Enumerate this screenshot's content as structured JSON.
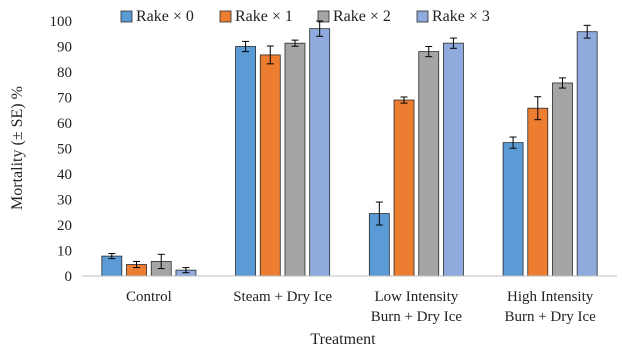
{
  "chart_data": {
    "type": "bar",
    "categories": [
      [
        "Control"
      ],
      [
        "Steam + Dry Ice"
      ],
      [
        "Low Intensity",
        "Burn + Dry Ice"
      ],
      [
        "High Intensity",
        "Burn + Dry Ice"
      ]
    ],
    "series": [
      {
        "name": "Rake × 0",
        "color": "#5b9bd5",
        "values": [
          7.8,
          90.0,
          24.5,
          52.3
        ],
        "errors": [
          1.0,
          2.0,
          4.5,
          2.2
        ]
      },
      {
        "name": "Rake × 1",
        "color": "#ed7d31",
        "values": [
          4.5,
          86.7,
          69.0,
          65.8
        ],
        "errors": [
          1.2,
          3.5,
          1.2,
          4.5
        ]
      },
      {
        "name": "Rake × 2",
        "color": "#a5a5a5",
        "values": [
          5.7,
          91.3,
          88.0,
          75.7
        ],
        "errors": [
          2.8,
          1.2,
          2.0,
          2.0
        ]
      },
      {
        "name": "Rake × 3",
        "color": "#8faadc",
        "values": [
          2.3,
          97.0,
          91.3,
          95.8
        ],
        "errors": [
          1.0,
          3.0,
          2.0,
          2.5
        ]
      }
    ],
    "xlabel": "Treatment",
    "ylabel": "Mortality (± SE) %",
    "ylim": [
      0,
      100
    ],
    "yticks": [
      0,
      10,
      20,
      30,
      40,
      50,
      60,
      70,
      80,
      90,
      100
    ],
    "grid": false,
    "legend": "top"
  }
}
